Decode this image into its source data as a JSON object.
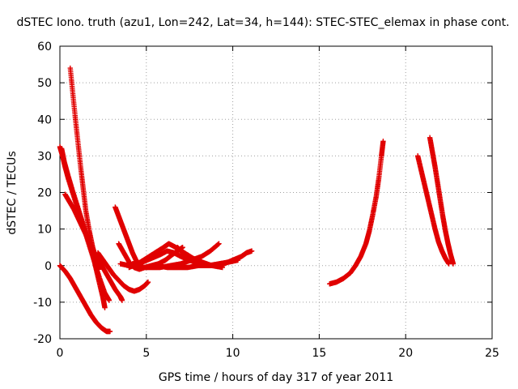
{
  "chart_data": {
    "type": "scatter",
    "title": "dSTEC Iono. truth (azu1, Lon=242, Lat=34, h=144): STEC-STEC_elemax in phase cont.",
    "xlabel": "GPS time / hours of day 317 of year 2011",
    "ylabel": "dSTEC  / TECUs",
    "xlim": [
      0,
      25
    ],
    "ylim": [
      -20,
      60
    ],
    "xticks": [
      0,
      5,
      10,
      15,
      20,
      25
    ],
    "yticks": [
      -20,
      -10,
      0,
      10,
      20,
      30,
      40,
      50,
      60
    ],
    "grid": true,
    "marker": "+",
    "color": "#e00000",
    "series": [
      {
        "points": [
          [
            0.0,
            32.5
          ],
          [
            0.15,
            30.0
          ],
          [
            0.3,
            27.0
          ],
          [
            0.5,
            23.5
          ],
          [
            0.8,
            19.0
          ],
          [
            1.1,
            14.5
          ],
          [
            1.4,
            10.0
          ],
          [
            1.7,
            5.5
          ],
          [
            2.0,
            1.0
          ],
          [
            2.3,
            -3.5
          ],
          [
            2.6,
            -7.5
          ],
          [
            2.85,
            -9.5
          ]
        ]
      },
      {
        "points": [
          [
            0.1,
            32.0
          ],
          [
            0.25,
            28.5
          ],
          [
            0.45,
            25.0
          ],
          [
            0.7,
            21.0
          ],
          [
            1.0,
            16.5
          ],
          [
            1.3,
            12.0
          ],
          [
            1.6,
            7.5
          ],
          [
            1.9,
            3.0
          ],
          [
            2.1,
            -1.0
          ],
          [
            2.3,
            -5.0
          ],
          [
            2.5,
            -9.0
          ],
          [
            2.6,
            -11.5
          ]
        ]
      },
      {
        "points": [
          [
            0.3,
            19.5
          ],
          [
            0.55,
            17.5
          ],
          [
            0.8,
            15.5
          ],
          [
            1.1,
            12.5
          ],
          [
            1.4,
            9.5
          ],
          [
            1.7,
            6.5
          ],
          [
            2.0,
            3.5
          ],
          [
            2.3,
            1.0
          ],
          [
            2.6,
            -1.5
          ],
          [
            2.9,
            -4.0
          ],
          [
            3.2,
            -6.5
          ],
          [
            3.5,
            -8.5
          ],
          [
            3.6,
            -9.5
          ]
        ]
      },
      {
        "points": [
          [
            0.6,
            54.0
          ],
          [
            0.75,
            47.0
          ],
          [
            0.9,
            40.0
          ],
          [
            1.05,
            33.5
          ],
          [
            1.2,
            27.0
          ],
          [
            1.35,
            21.0
          ],
          [
            1.5,
            15.0
          ],
          [
            1.7,
            9.5
          ],
          [
            1.9,
            5.0
          ],
          [
            2.1,
            1.5
          ],
          [
            2.25,
            -1.0
          ]
        ]
      },
      {
        "points": [
          [
            0.0,
            0.0
          ],
          [
            0.3,
            -1.5
          ],
          [
            0.6,
            -3.5
          ],
          [
            0.9,
            -6.0
          ],
          [
            1.2,
            -8.5
          ],
          [
            1.5,
            -11.0
          ],
          [
            1.8,
            -13.5
          ],
          [
            2.1,
            -15.5
          ],
          [
            2.4,
            -17.0
          ],
          [
            2.7,
            -18.0
          ],
          [
            2.9,
            -18.0
          ]
        ]
      },
      {
        "points": [
          [
            2.2,
            3.5
          ],
          [
            2.5,
            1.5
          ],
          [
            2.8,
            -0.5
          ],
          [
            3.1,
            -2.5
          ],
          [
            3.4,
            -4.0
          ],
          [
            3.7,
            -5.5
          ],
          [
            4.0,
            -6.5
          ],
          [
            4.3,
            -7.0
          ],
          [
            4.6,
            -6.5
          ],
          [
            4.9,
            -5.5
          ],
          [
            5.1,
            -4.5
          ]
        ]
      },
      {
        "points": [
          [
            3.2,
            16.0
          ],
          [
            3.4,
            13.5
          ],
          [
            3.6,
            11.0
          ],
          [
            3.8,
            8.5
          ],
          [
            4.0,
            6.0
          ],
          [
            4.2,
            3.5
          ],
          [
            4.4,
            1.5
          ],
          [
            4.6,
            0.0
          ],
          [
            4.8,
            -0.5
          ]
        ]
      },
      {
        "points": [
          [
            3.4,
            6.0
          ],
          [
            3.7,
            3.5
          ],
          [
            4.0,
            1.0
          ],
          [
            4.3,
            -0.5
          ],
          [
            4.6,
            -1.0
          ],
          [
            4.9,
            -0.5
          ],
          [
            5.3,
            0.0
          ],
          [
            5.7,
            0.5
          ],
          [
            6.1,
            1.5
          ],
          [
            6.5,
            3.0
          ],
          [
            6.8,
            4.0
          ],
          [
            7.1,
            5.0
          ]
        ]
      },
      {
        "points": [
          [
            3.5,
            0.5
          ],
          [
            4.0,
            0.0
          ],
          [
            4.6,
            -0.5
          ],
          [
            5.2,
            -0.5
          ],
          [
            5.8,
            -0.5
          ],
          [
            6.4,
            0.0
          ],
          [
            7.0,
            0.5
          ],
          [
            7.6,
            1.5
          ],
          [
            8.2,
            2.5
          ],
          [
            8.7,
            4.0
          ],
          [
            9.2,
            6.0
          ]
        ]
      },
      {
        "points": [
          [
            4.0,
            -0.5
          ],
          [
            4.5,
            0.5
          ],
          [
            5.0,
            2.0
          ],
          [
            5.5,
            3.5
          ],
          [
            6.0,
            5.0
          ],
          [
            6.3,
            6.0
          ],
          [
            6.7,
            5.0
          ],
          [
            7.2,
            3.5
          ],
          [
            7.7,
            2.0
          ],
          [
            8.2,
            1.0
          ],
          [
            8.8,
            0.0
          ],
          [
            9.4,
            -0.5
          ]
        ]
      },
      {
        "points": [
          [
            4.2,
            0.5
          ],
          [
            4.8,
            1.0
          ],
          [
            5.3,
            2.0
          ],
          [
            5.8,
            3.0
          ],
          [
            6.2,
            4.0
          ],
          [
            6.6,
            3.5
          ],
          [
            7.0,
            2.5
          ],
          [
            7.5,
            1.5
          ],
          [
            8.0,
            0.5
          ],
          [
            8.6,
            0.0
          ]
        ]
      },
      {
        "points": [
          [
            6.8,
            5.0
          ],
          [
            7.2,
            3.0
          ],
          [
            7.6,
            1.5
          ],
          [
            8.0,
            0.5
          ],
          [
            8.5,
            0.0
          ],
          [
            9.0,
            0.0
          ],
          [
            9.5,
            0.5
          ],
          [
            10.0,
            1.5
          ],
          [
            10.5,
            2.5
          ],
          [
            10.8,
            3.5
          ],
          [
            11.1,
            4.0
          ]
        ]
      },
      {
        "points": [
          [
            5.6,
            0.0
          ],
          [
            6.2,
            -0.5
          ],
          [
            6.8,
            -0.5
          ],
          [
            7.4,
            -0.5
          ],
          [
            8.0,
            0.0
          ],
          [
            8.6,
            0.0
          ],
          [
            9.2,
            0.5
          ],
          [
            9.8,
            1.0
          ],
          [
            10.3,
            1.5
          ]
        ]
      },
      {
        "points": [
          [
            15.6,
            -5.0
          ],
          [
            16.0,
            -4.5
          ],
          [
            16.4,
            -3.5
          ],
          [
            16.8,
            -2.0
          ],
          [
            17.1,
            0.0
          ],
          [
            17.4,
            2.5
          ],
          [
            17.7,
            6.0
          ],
          [
            17.9,
            9.5
          ],
          [
            18.1,
            14.0
          ],
          [
            18.3,
            19.0
          ],
          [
            18.45,
            24.0
          ],
          [
            18.6,
            30.0
          ],
          [
            18.7,
            34.0
          ]
        ]
      },
      {
        "points": [
          [
            20.7,
            30.0
          ],
          [
            20.9,
            26.0
          ],
          [
            21.1,
            22.0
          ],
          [
            21.3,
            18.0
          ],
          [
            21.5,
            14.0
          ],
          [
            21.7,
            10.0
          ],
          [
            21.9,
            6.5
          ],
          [
            22.1,
            4.0
          ],
          [
            22.3,
            2.0
          ],
          [
            22.5,
            0.5
          ]
        ]
      },
      {
        "points": [
          [
            21.4,
            35.0
          ],
          [
            21.55,
            31.0
          ],
          [
            21.7,
            27.0
          ],
          [
            21.85,
            22.5
          ],
          [
            22.0,
            18.0
          ],
          [
            22.15,
            13.5
          ],
          [
            22.3,
            9.5
          ],
          [
            22.45,
            6.0
          ],
          [
            22.6,
            3.0
          ],
          [
            22.75,
            0.5
          ]
        ]
      }
    ]
  }
}
